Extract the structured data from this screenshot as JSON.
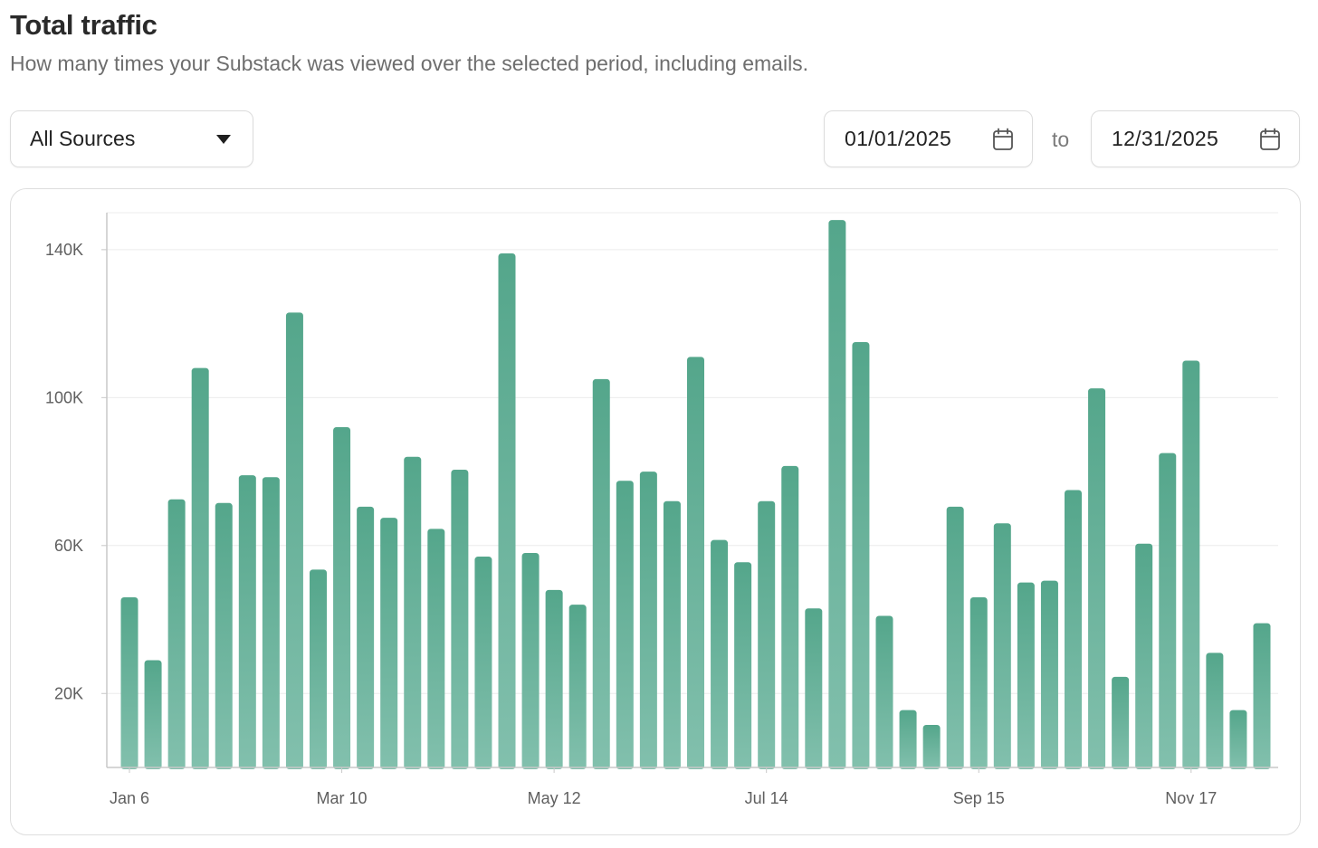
{
  "header": {
    "title": "Total traffic",
    "subtitle": "How many times your Substack was viewed over the selected period, including emails."
  },
  "filters": {
    "source_select": {
      "value": "All Sources",
      "icon": "caret-down-icon"
    },
    "date_from": {
      "value": "01/01/2025",
      "icon": "calendar-icon"
    },
    "to_label": "to",
    "date_to": {
      "value": "12/31/2025",
      "icon": "calendar-icon"
    }
  },
  "colors": {
    "bar_top": "#54a68b",
    "bar_bottom": "#82c0ad",
    "gridline": "#ececec",
    "axis": "#c8c8c8"
  },
  "chart_data": {
    "type": "bar",
    "title": "",
    "xlabel": "",
    "ylabel": "",
    "ylim": [
      0,
      150000
    ],
    "yticks": [
      20000,
      60000,
      100000,
      140000
    ],
    "ytick_labels": [
      "20K",
      "60K",
      "100K",
      "140K"
    ],
    "xtick_labels": [
      {
        "label": "Jan 6",
        "index": 0
      },
      {
        "label": "Mar 10",
        "index": 9
      },
      {
        "label": "May 12",
        "index": 18
      },
      {
        "label": "Jul 14",
        "index": 27
      },
      {
        "label": "Sep 15",
        "index": 36
      },
      {
        "label": "Nov 17",
        "index": 45
      }
    ],
    "grid": true,
    "series": [
      {
        "values": [
          46000,
          29000,
          72500,
          108000,
          71500,
          79000,
          78500,
          123000,
          53500,
          92000,
          70500,
          67500,
          84000,
          64500,
          80500,
          57000,
          139000,
          58000,
          48000,
          44000,
          105000,
          77500,
          80000,
          72000,
          111000,
          61500,
          55500,
          72000,
          81500,
          43000,
          148000,
          115000,
          41000,
          15500,
          11500,
          70500,
          46000,
          66000,
          50000,
          50500,
          75000,
          102500,
          24500,
          60500,
          85000,
          110000,
          31000,
          15500,
          39000
        ]
      }
    ]
  }
}
